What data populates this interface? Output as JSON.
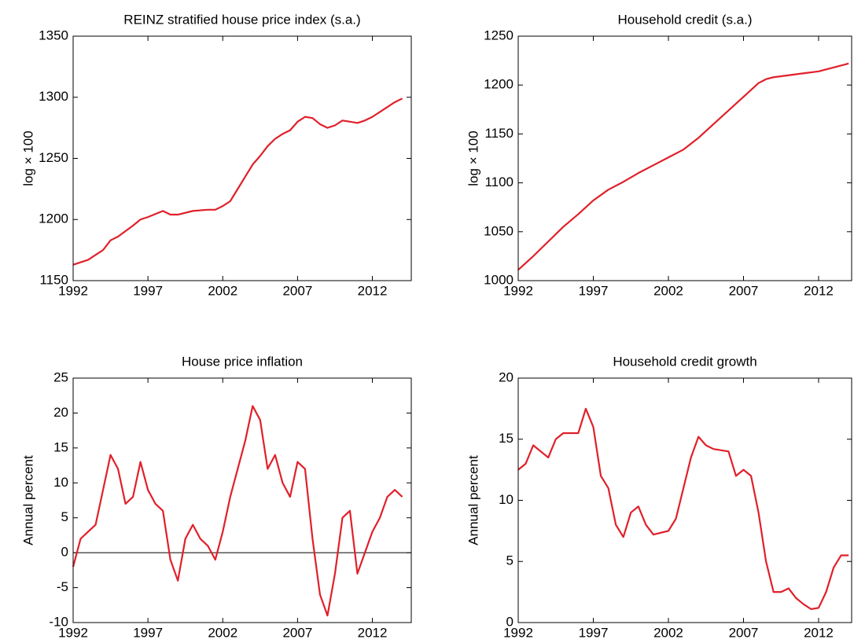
{
  "chart_data": [
    {
      "type": "line",
      "title": "REINZ stratified house price index (s.a.)",
      "ylabel": "log × 100",
      "x": [
        1992,
        1993,
        1994,
        1994.5,
        1995,
        1996,
        1996.5,
        1997,
        1998,
        1998.5,
        1999,
        2000,
        2001,
        2001.5,
        2002,
        2002.5,
        2003,
        2003.5,
        2004,
        2004.5,
        2005,
        2005.5,
        2006,
        2006.5,
        2007,
        2007.5,
        2008,
        2008.5,
        2009,
        2009.5,
        2010,
        2010.5,
        2011,
        2011.5,
        2012,
        2012.5,
        2013,
        2013.5,
        2014
      ],
      "values": [
        1163,
        1167,
        1175,
        1183,
        1186,
        1195,
        1200,
        1202,
        1207,
        1204,
        1204,
        1207,
        1208,
        1208,
        1211,
        1215,
        1225,
        1235,
        1245,
        1252,
        1260,
        1266,
        1270,
        1273,
        1280,
        1284,
        1283,
        1278,
        1275,
        1277,
        1281,
        1280,
        1279,
        1281,
        1284,
        1288,
        1292,
        1296,
        1299
      ],
      "color": "#e0202a",
      "xlim": [
        1992,
        2014.6
      ],
      "xticks": [
        1992,
        1997,
        2002,
        2007,
        2012
      ],
      "ylim": [
        1150,
        1350
      ],
      "yticks": [
        1150,
        1200,
        1250,
        1300,
        1350
      ]
    },
    {
      "type": "line",
      "title": "Household credit (s.a.)",
      "ylabel": "log × 100",
      "x": [
        1992,
        1993,
        1994,
        1995,
        1996,
        1997,
        1998,
        1999,
        2000,
        2001,
        2002,
        2003,
        2004,
        2005,
        2006,
        2007,
        2008,
        2008.5,
        2009,
        2010,
        2011,
        2012,
        2013,
        2014
      ],
      "values": [
        1011,
        1025,
        1040,
        1055,
        1068,
        1082,
        1093,
        1101,
        1110,
        1118,
        1126,
        1134,
        1146,
        1160,
        1174,
        1188,
        1202,
        1206,
        1208,
        1210,
        1212,
        1214,
        1218,
        1222
      ],
      "color": "#e0202a",
      "xlim": [
        1992,
        2014.2
      ],
      "xticks": [
        1992,
        1997,
        2002,
        2007,
        2012
      ],
      "ylim": [
        1000,
        1250
      ],
      "yticks": [
        1000,
        1050,
        1100,
        1150,
        1200,
        1250
      ]
    },
    {
      "type": "line",
      "title": "House price inflation",
      "ylabel": "Annual percent",
      "x": [
        1992,
        1992.5,
        1993,
        1993.5,
        1994,
        1994.5,
        1995,
        1995.5,
        1996,
        1996.5,
        1997,
        1997.5,
        1998,
        1998.5,
        1999,
        1999.5,
        2000,
        2000.5,
        2001,
        2001.5,
        2002,
        2002.5,
        2003,
        2003.5,
        2004,
        2004.5,
        2005,
        2005.5,
        2006,
        2006.5,
        2007,
        2007.5,
        2008,
        2008.5,
        2009,
        2009.5,
        2010,
        2010.5,
        2011,
        2011.5,
        2012,
        2012.5,
        2013,
        2013.5,
        2014
      ],
      "values": [
        -2,
        2,
        3,
        4,
        9,
        14,
        12,
        7,
        8,
        13,
        9,
        7,
        6,
        -1,
        -4,
        2,
        4,
        2,
        1,
        -1,
        3,
        8,
        12,
        16,
        21,
        19,
        12,
        14,
        10,
        8,
        13,
        12,
        2,
        -6,
        -9,
        -3,
        5,
        6,
        -3,
        0,
        3,
        5,
        8,
        9,
        8
      ],
      "color": "#e0202a",
      "reference_line": 0,
      "xlim": [
        1992,
        2014.6
      ],
      "xticks": [
        1992,
        1997,
        2002,
        2007,
        2012
      ],
      "ylim": [
        -10,
        25
      ],
      "yticks": [
        -10,
        -5,
        0,
        5,
        10,
        15,
        20,
        25
      ]
    },
    {
      "type": "line",
      "title": "Household credit growth",
      "ylabel": "Annual percent",
      "x": [
        1992,
        1992.5,
        1993,
        1994,
        1994.5,
        1995,
        1996,
        1996.5,
        1997,
        1997.5,
        1998,
        1998.5,
        1999,
        1999.5,
        2000,
        2000.5,
        2001,
        2002,
        2002.5,
        2003,
        2003.5,
        2004,
        2004.5,
        2005,
        2006,
        2006.5,
        2007,
        2007.5,
        2008,
        2008.5,
        2009,
        2009.5,
        2010,
        2010.5,
        2011,
        2011.5,
        2012,
        2012.5,
        2013,
        2013.5,
        2014
      ],
      "values": [
        12.5,
        13,
        14.5,
        13.5,
        15,
        15.5,
        15.5,
        17.5,
        16,
        12,
        11,
        8,
        7,
        9,
        9.5,
        8,
        7.2,
        7.5,
        8.5,
        11,
        13.5,
        15.2,
        14.5,
        14.2,
        14,
        12,
        12.5,
        12,
        9,
        5,
        2.5,
        2.5,
        2.8,
        2,
        1.5,
        1.1,
        1.2,
        2.5,
        4.5,
        5.5,
        5.5
      ],
      "color": "#e0202a",
      "xlim": [
        1992,
        2014.2
      ],
      "xticks": [
        1992,
        1997,
        2002,
        2007,
        2012
      ],
      "ylim": [
        0,
        20
      ],
      "yticks": [
        0,
        5,
        10,
        15,
        20
      ]
    }
  ]
}
